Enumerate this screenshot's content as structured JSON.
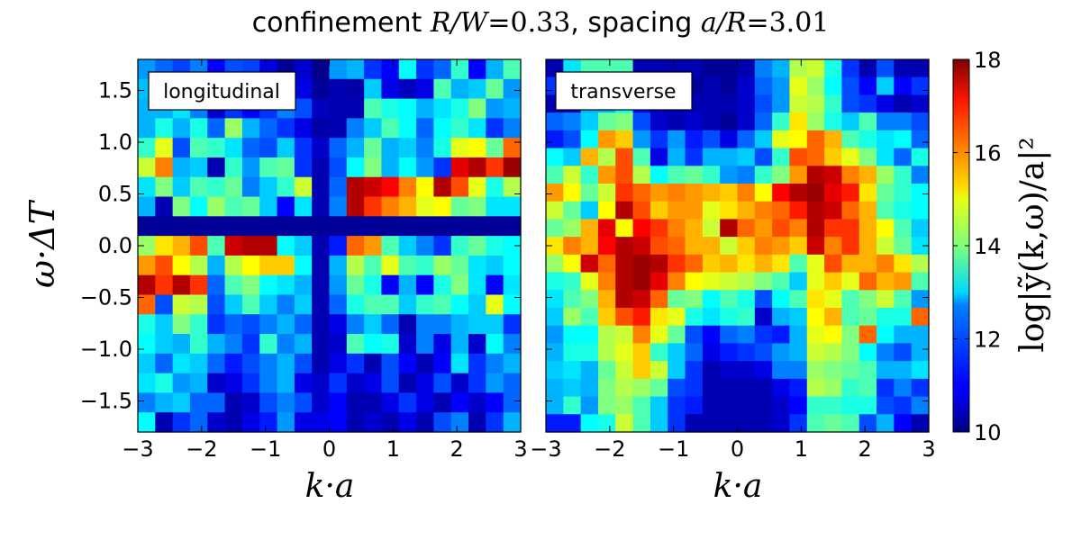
{
  "chart_data": {
    "type": "heatmap",
    "title": {
      "part1": "confinement ",
      "math1": "R/W",
      "val1": "=0.33",
      "part2": ", spacing ",
      "math2": "a/R",
      "val2": "=3.01"
    },
    "ylabel": "ω·ΔT",
    "xlabel": "k·a",
    "colorbar_label": "log|ỹ(k,ω)/a|²",
    "colormap": "jet",
    "clim": [
      10,
      18
    ],
    "colorbar_ticks": [
      "10",
      "12",
      "14",
      "16",
      "18"
    ],
    "xlim": [
      -3.0,
      3.0
    ],
    "ylim": [
      -1.8,
      1.8
    ],
    "x_tick_labels": [
      "−3",
      "−2",
      "−1",
      "0",
      "1",
      "2",
      "3"
    ],
    "y_tick_labels": [
      "1.5",
      "1.0",
      "0.5",
      "0.0",
      "−0.5",
      "−1.0",
      "−1.5"
    ],
    "grid": "off",
    "panels": [
      {
        "label": "longitudinal",
        "rows_top_to_bottom": [
          [
            12.2,
            11.8,
            11.5,
            12.0,
            11.0,
            11.6,
            11.5,
            10.8,
            10.2,
            10.6,
            10.1,
            12.2,
            12.4,
            11.4,
            11.0,
            13.0,
            11.4,
            11.8,
            13.4,
            11.0,
            12.4,
            13.6
          ],
          [
            12.5,
            12.8,
            12.4,
            12.0,
            10.8,
            11.5,
            10.6,
            12.0,
            13.2,
            10.8,
            10.2,
            10.4,
            10.3,
            12.6,
            10.8,
            10.5,
            10.8,
            13.6,
            12.4,
            12.6,
            13.8,
            12.2
          ],
          [
            12.4,
            12.4,
            12.8,
            12.0,
            10.6,
            11.4,
            11.0,
            11.4,
            12.0,
            11.6,
            10.5,
            10.4,
            10.4,
            13.6,
            13.2,
            13.0,
            12.4,
            12.8,
            13.2,
            14.0,
            12.2,
            12.4
          ],
          [
            12.4,
            13.2,
            12.4,
            13.2,
            11.8,
            14.2,
            12.4,
            11.8,
            11.4,
            10.8,
            10.3,
            10.4,
            12.0,
            12.6,
            13.6,
            13.0,
            11.8,
            13.0,
            13.4,
            12.8,
            11.4,
            12.0
          ],
          [
            13.4,
            14.8,
            11.6,
            13.6,
            13.4,
            12.8,
            11.8,
            11.6,
            12.6,
            11.4,
            10.6,
            11.8,
            12.4,
            13.8,
            12.4,
            12.6,
            12.0,
            13.2,
            14.8,
            15.0,
            13.8,
            16.2
          ],
          [
            14.6,
            16.0,
            12.4,
            12.6,
            10.4,
            13.4,
            12.2,
            13.6,
            13.8,
            11.4,
            10.4,
            11.6,
            13.0,
            14.0,
            12.4,
            13.0,
            12.2,
            11.4,
            17.2,
            17.6,
            16.6,
            17.8
          ],
          [
            12.8,
            14.0,
            12.6,
            13.6,
            13.4,
            13.8,
            12.0,
            12.6,
            13.4,
            14.6,
            10.4,
            11.8,
            17.6,
            17.4,
            17.0,
            16.0,
            15.0,
            17.6,
            16.4,
            14.8,
            13.2,
            14.4
          ],
          [
            12.4,
            10.4,
            14.0,
            13.0,
            14.2,
            13.6,
            13.8,
            12.6,
            11.0,
            12.8,
            10.4,
            12.0,
            17.6,
            16.6,
            16.0,
            15.6,
            14.8,
            15.0,
            13.8,
            14.0,
            12.8,
            12.8
          ],
          [
            10.2,
            10.2,
            10.2,
            10.2,
            10.2,
            10.2,
            10.2,
            10.2,
            10.2,
            10.2,
            10.2,
            10.2,
            10.2,
            10.2,
            10.2,
            10.2,
            10.2,
            10.2,
            10.2,
            10.2,
            10.2,
            10.2
          ],
          [
            14.2,
            15.2,
            15.6,
            16.4,
            13.6,
            17.4,
            17.6,
            17.6,
            13.0,
            12.6,
            10.4,
            11.2,
            16.2,
            15.8,
            13.6,
            12.6,
            12.0,
            11.4,
            13.4,
            13.8,
            13.2,
            13.0
          ],
          [
            15.8,
            16.4,
            15.0,
            14.4,
            12.4,
            14.4,
            15.0,
            15.4,
            15.4,
            13.0,
            10.4,
            12.4,
            14.4,
            13.6,
            14.8,
            13.6,
            13.4,
            14.2,
            13.8,
            12.8,
            12.6,
            13.0
          ],
          [
            17.6,
            16.6,
            17.6,
            16.6,
            11.8,
            13.6,
            14.0,
            13.0,
            12.8,
            12.4,
            10.4,
            12.2,
            13.8,
            13.2,
            11.0,
            12.4,
            11.0,
            13.2,
            14.0,
            12.8,
            11.0,
            12.8
          ],
          [
            16.2,
            11.6,
            14.6,
            14.4,
            11.6,
            12.6,
            13.6,
            12.6,
            12.0,
            12.6,
            10.4,
            11.8,
            13.2,
            13.6,
            13.6,
            12.6,
            13.4,
            13.6,
            13.0,
            12.6,
            14.8,
            13.0
          ],
          [
            13.2,
            12.6,
            14.0,
            13.4,
            11.4,
            11.8,
            11.6,
            12.0,
            12.4,
            11.8,
            10.4,
            10.8,
            12.0,
            12.6,
            11.8,
            10.4,
            12.0,
            12.0,
            12.4,
            12.6,
            12.6,
            11.4
          ],
          [
            13.0,
            12.6,
            12.4,
            13.4,
            12.4,
            12.0,
            11.4,
            13.4,
            12.0,
            12.4,
            10.4,
            10.6,
            13.6,
            13.0,
            13.2,
            10.6,
            12.0,
            10.8,
            12.4,
            10.6,
            13.0,
            12.0
          ],
          [
            12.6,
            11.8,
            12.8,
            12.6,
            11.8,
            11.2,
            11.6,
            12.0,
            12.4,
            11.6,
            10.4,
            10.8,
            11.4,
            10.4,
            11.6,
            11.0,
            10.4,
            11.0,
            12.8,
            11.4,
            12.0,
            12.4
          ],
          [
            12.8,
            13.2,
            12.2,
            12.4,
            10.6,
            10.8,
            11.4,
            12.0,
            12.4,
            10.8,
            10.6,
            11.4,
            10.6,
            10.8,
            11.6,
            10.4,
            10.8,
            11.6,
            10.6,
            11.4,
            12.2,
            11.8
          ],
          [
            12.0,
            12.4,
            12.6,
            11.8,
            11.8,
            10.4,
            10.6,
            11.6,
            12.0,
            11.6,
            10.6,
            11.0,
            10.4,
            10.4,
            10.8,
            11.4,
            10.8,
            10.4,
            11.0,
            10.6,
            11.0,
            11.8
          ],
          [
            13.0,
            10.4,
            11.4,
            11.8,
            10.6,
            10.4,
            10.8,
            11.2,
            12.2,
            10.8,
            10.8,
            11.0,
            10.4,
            10.6,
            10.4,
            10.8,
            10.4,
            11.6,
            12.0,
            10.4,
            11.4,
            12.4
          ]
        ]
      },
      {
        "label": "transverse",
        "rows_top_to_bottom": [
          [
            10.4,
            12.8,
            13.6,
            13.6,
            13.6,
            10.4,
            10.4,
            10.4,
            10.4,
            10.2,
            10.2,
            10.4,
            12.0,
            12.4,
            14.4,
            14.6,
            13.2,
            11.4,
            10.4,
            11.6,
            10.4,
            10.4
          ],
          [
            11.4,
            10.6,
            12.8,
            13.4,
            12.8,
            11.4,
            10.4,
            10.2,
            10.2,
            10.4,
            10.2,
            10.6,
            11.8,
            12.2,
            14.8,
            14.2,
            13.0,
            11.6,
            11.0,
            12.6,
            11.0,
            11.4
          ],
          [
            10.4,
            10.4,
            12.4,
            12.4,
            13.0,
            11.0,
            10.4,
            10.4,
            10.4,
            10.4,
            10.4,
            10.6,
            11.6,
            12.2,
            14.6,
            14.4,
            13.4,
            11.6,
            11.4,
            10.8,
            10.4,
            10.6
          ],
          [
            11.8,
            12.0,
            12.6,
            13.8,
            14.0,
            11.6,
            10.6,
            10.4,
            10.6,
            10.4,
            10.2,
            10.6,
            11.8,
            13.4,
            15.2,
            14.2,
            13.2,
            12.6,
            13.6,
            12.0,
            12.0,
            11.6
          ],
          [
            11.2,
            11.6,
            13.0,
            15.8,
            15.4,
            12.2,
            11.4,
            12.2,
            11.2,
            11.6,
            10.8,
            11.8,
            12.6,
            14.8,
            15.0,
            16.2,
            15.6,
            13.6,
            13.2,
            12.8,
            13.0,
            11.8
          ],
          [
            13.0,
            12.6,
            15.6,
            14.4,
            16.4,
            13.6,
            10.8,
            12.4,
            11.4,
            12.4,
            12.4,
            12.6,
            11.6,
            13.4,
            16.4,
            16.2,
            15.4,
            14.8,
            14.0,
            12.8,
            11.8,
            13.2
          ],
          [
            13.6,
            14.6,
            13.4,
            15.8,
            16.4,
            14.4,
            13.0,
            13.6,
            13.8,
            13.4,
            12.2,
            12.0,
            13.4,
            14.0,
            15.8,
            17.6,
            17.4,
            16.0,
            15.6,
            14.2,
            13.4,
            12.0
          ],
          [
            15.8,
            15.0,
            13.8,
            14.6,
            16.6,
            16.2,
            15.8,
            16.0,
            15.8,
            15.6,
            15.4,
            16.0,
            15.0,
            17.0,
            17.6,
            17.8,
            17.2,
            16.8,
            15.2,
            13.8,
            13.4,
            13.0
          ],
          [
            14.6,
            13.8,
            12.6,
            15.0,
            17.6,
            16.4,
            15.4,
            15.8,
            15.8,
            14.8,
            15.2,
            15.6,
            16.0,
            16.2,
            16.8,
            17.6,
            17.4,
            16.2,
            15.6,
            13.6,
            13.2,
            13.0
          ],
          [
            13.8,
            14.2,
            15.6,
            17.2,
            15.0,
            17.0,
            16.6,
            16.0,
            15.6,
            14.6,
            17.6,
            16.2,
            15.8,
            16.4,
            16.0,
            17.6,
            16.6,
            16.6,
            15.6,
            15.0,
            13.6,
            12.6
          ],
          [
            15.2,
            16.0,
            15.6,
            17.0,
            17.6,
            17.4,
            16.4,
            16.2,
            15.6,
            15.6,
            14.6,
            15.4,
            16.0,
            15.8,
            15.4,
            17.4,
            16.0,
            16.6,
            15.6,
            14.6,
            13.8,
            12.8
          ],
          [
            14.2,
            15.0,
            17.4,
            16.2,
            17.6,
            17.8,
            17.6,
            16.6,
            16.2,
            15.4,
            15.6,
            15.2,
            15.6,
            15.2,
            13.6,
            14.8,
            16.4,
            15.6,
            15.6,
            16.0,
            15.2,
            14.4
          ],
          [
            13.2,
            13.4,
            14.8,
            16.0,
            17.6,
            17.8,
            17.2,
            16.0,
            15.0,
            14.8,
            14.6,
            14.4,
            14.0,
            13.6,
            12.6,
            14.8,
            15.4,
            14.8,
            16.2,
            15.6,
            15.8,
            13.6
          ],
          [
            12.8,
            13.6,
            14.0,
            15.6,
            17.6,
            17.4,
            16.2,
            13.8,
            14.0,
            13.0,
            13.6,
            13.2,
            11.6,
            13.0,
            13.6,
            15.2,
            14.8,
            13.6,
            14.0,
            14.6,
            13.6,
            12.2
          ],
          [
            12.6,
            14.2,
            13.6,
            15.4,
            16.4,
            16.8,
            15.2,
            14.8,
            13.2,
            12.8,
            13.2,
            13.4,
            10.6,
            12.4,
            12.6,
            15.0,
            15.6,
            13.6,
            13.8,
            13.2,
            13.2,
            16.2
          ],
          [
            12.2,
            13.0,
            13.0,
            14.4,
            14.6,
            16.0,
            14.8,
            13.8,
            11.6,
            11.0,
            11.8,
            12.0,
            11.4,
            11.2,
            12.4,
            14.8,
            15.0,
            14.0,
            16.2,
            13.0,
            12.4,
            12.4
          ],
          [
            12.4,
            13.2,
            13.2,
            14.4,
            14.8,
            15.4,
            13.4,
            12.6,
            11.8,
            10.8,
            11.2,
            11.4,
            11.6,
            12.2,
            12.4,
            14.6,
            14.4,
            14.0,
            13.0,
            12.0,
            11.6,
            12.4
          ],
          [
            12.6,
            12.8,
            12.4,
            13.8,
            14.6,
            15.4,
            14.6,
            12.6,
            11.4,
            10.4,
            10.6,
            10.6,
            10.8,
            12.0,
            12.0,
            14.2,
            14.0,
            13.8,
            13.6,
            12.4,
            12.4,
            12.8
          ],
          [
            12.4,
            12.6,
            12.4,
            14.0,
            14.4,
            14.2,
            13.8,
            11.6,
            11.4,
            10.4,
            10.4,
            10.4,
            10.4,
            10.8,
            11.2,
            14.4,
            14.2,
            13.4,
            13.6,
            11.4,
            12.0,
            11.4
          ],
          [
            12.4,
            13.4,
            12.2,
            14.0,
            14.2,
            13.6,
            12.6,
            11.4,
            11.2,
            10.4,
            10.4,
            10.4,
            10.4,
            10.6,
            11.0,
            13.4,
            13.4,
            13.2,
            13.2,
            11.6,
            11.4,
            12.0
          ],
          [
            11.2,
            11.2,
            13.0,
            13.2,
            14.6,
            13.6,
            12.6,
            11.4,
            10.4,
            10.4,
            10.4,
            10.4,
            10.4,
            10.6,
            11.4,
            13.6,
            13.8,
            13.6,
            11.6,
            12.4,
            11.0,
            10.4
          ]
        ]
      }
    ]
  }
}
